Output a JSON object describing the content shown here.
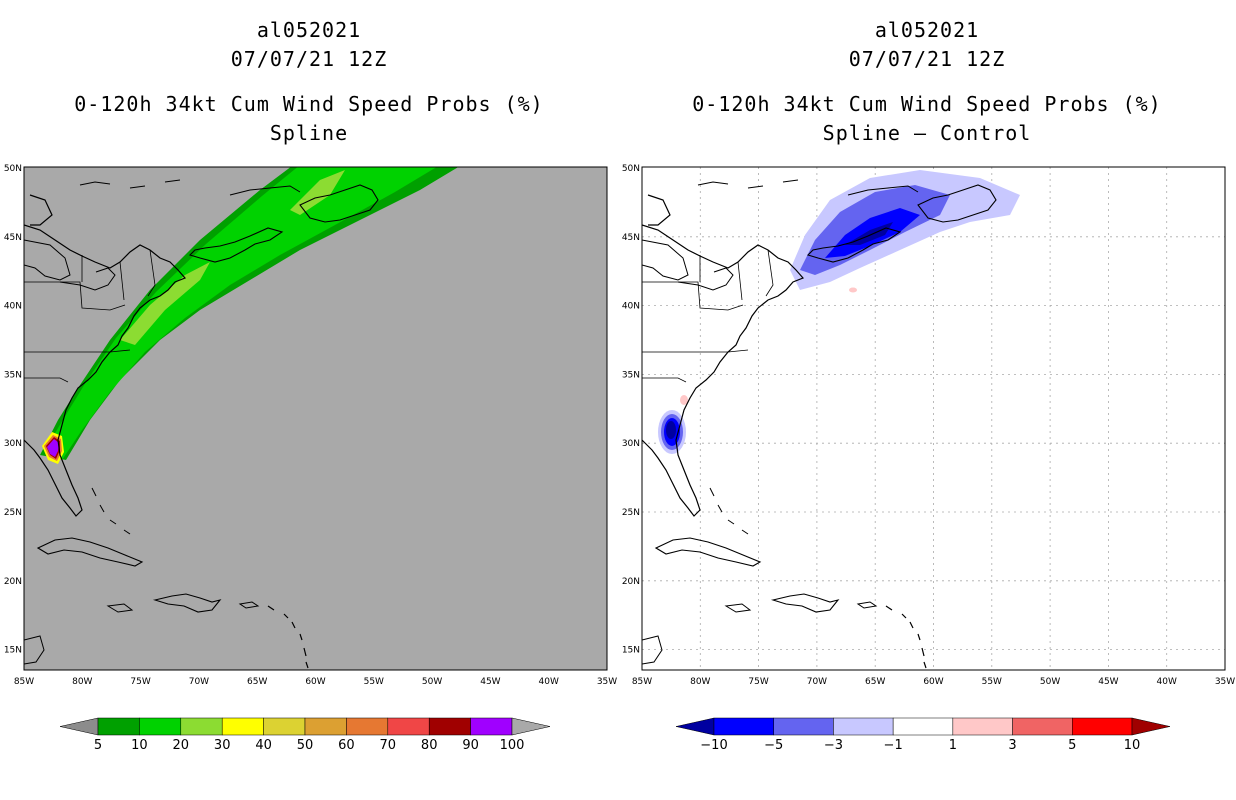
{
  "left": {
    "storm_id": "al052021",
    "datetime": "07/07/21 12Z",
    "product": "0-120h 34kt Cum Wind Speed Probs (%)",
    "subtitle": "Spline",
    "background": "#a9a9a9",
    "colorbar": {
      "labels": [
        "5",
        "10",
        "20",
        "30",
        "40",
        "50",
        "60",
        "70",
        "80",
        "90",
        "100"
      ],
      "colors": [
        "#8c8c8c",
        "#00a000",
        "#00d200",
        "#8cdc32",
        "#ffff00",
        "#dcd232",
        "#dca032",
        "#e67832",
        "#f04646",
        "#a00000",
        "#a000ff",
        "#a9a9a9"
      ]
    }
  },
  "right": {
    "storm_id": "al052021",
    "datetime": "07/07/21 12Z",
    "product": "0-120h 34kt Cum Wind Speed Probs (%)",
    "subtitle": "Spline – Control",
    "background": "#ffffff",
    "colorbar": {
      "labels": [
        "−10",
        "−5",
        "−3",
        "−1",
        "1",
        "3",
        "5",
        "10"
      ],
      "colors": [
        "#0000a0",
        "#0000ff",
        "#6464f0",
        "#c8c8ff",
        "#ffffff",
        "#ffc8c8",
        "#f06464",
        "#ff0000",
        "#a00000"
      ]
    }
  },
  "axes": {
    "lat_labels": [
      "50N",
      "45N",
      "40N",
      "35N",
      "30N",
      "25N",
      "20N",
      "15N"
    ],
    "lon_labels": [
      "85W",
      "80W",
      "75W",
      "70W",
      "65W",
      "60W",
      "55W",
      "50W",
      "45W",
      "40W",
      "35W"
    ]
  }
}
